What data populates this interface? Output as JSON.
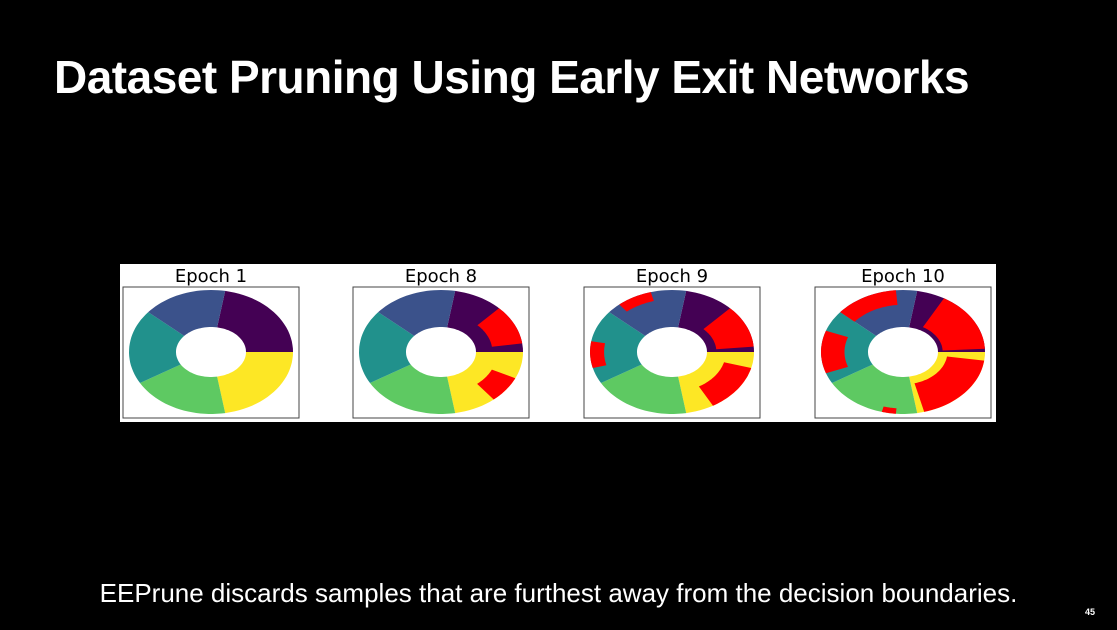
{
  "title": "Dataset Pruning Using Early Exit Networks",
  "panels": [
    {
      "title": "Epoch 1"
    },
    {
      "title": "Epoch 8"
    },
    {
      "title": "Epoch 9"
    },
    {
      "title": "Epoch 10"
    }
  ],
  "caption": "EEPrune discards samples that are furthest away from the decision boundaries.",
  "page_number": "45"
}
